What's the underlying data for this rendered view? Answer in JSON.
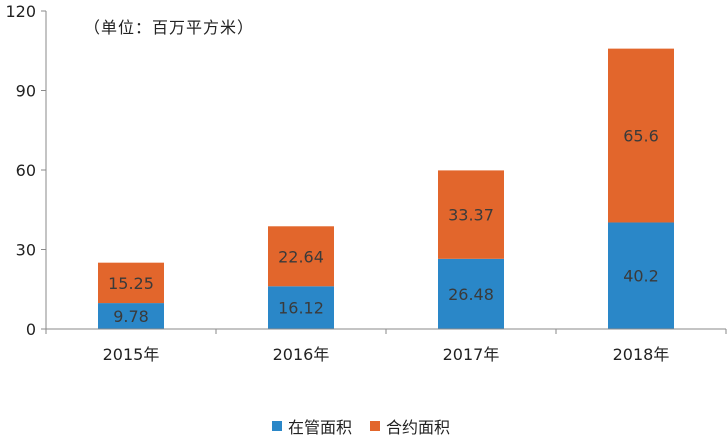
{
  "chart_data": {
    "type": "bar",
    "stacked": true,
    "unit_note": "（单位：百万平方米）",
    "categories": [
      "2015年",
      "2016年",
      "2017年",
      "2018年"
    ],
    "series": [
      {
        "name": "在管面积",
        "color": "#2a87c8",
        "values": [
          9.78,
          16.12,
          26.48,
          40.2
        ],
        "labels": [
          "9.78",
          "16.12",
          "26.48",
          "40.2"
        ]
      },
      {
        "name": "合约面积",
        "color": "#e2662c",
        "values": [
          15.25,
          22.64,
          33.37,
          65.6
        ],
        "labels": [
          "15.25",
          "22.64",
          "33.37",
          "65.6"
        ]
      }
    ],
    "yticks": [
      "0",
      "30",
      "60",
      "90",
      "120"
    ],
    "ylim": [
      0,
      120
    ],
    "grid": false,
    "legend_position": "bottom"
  }
}
